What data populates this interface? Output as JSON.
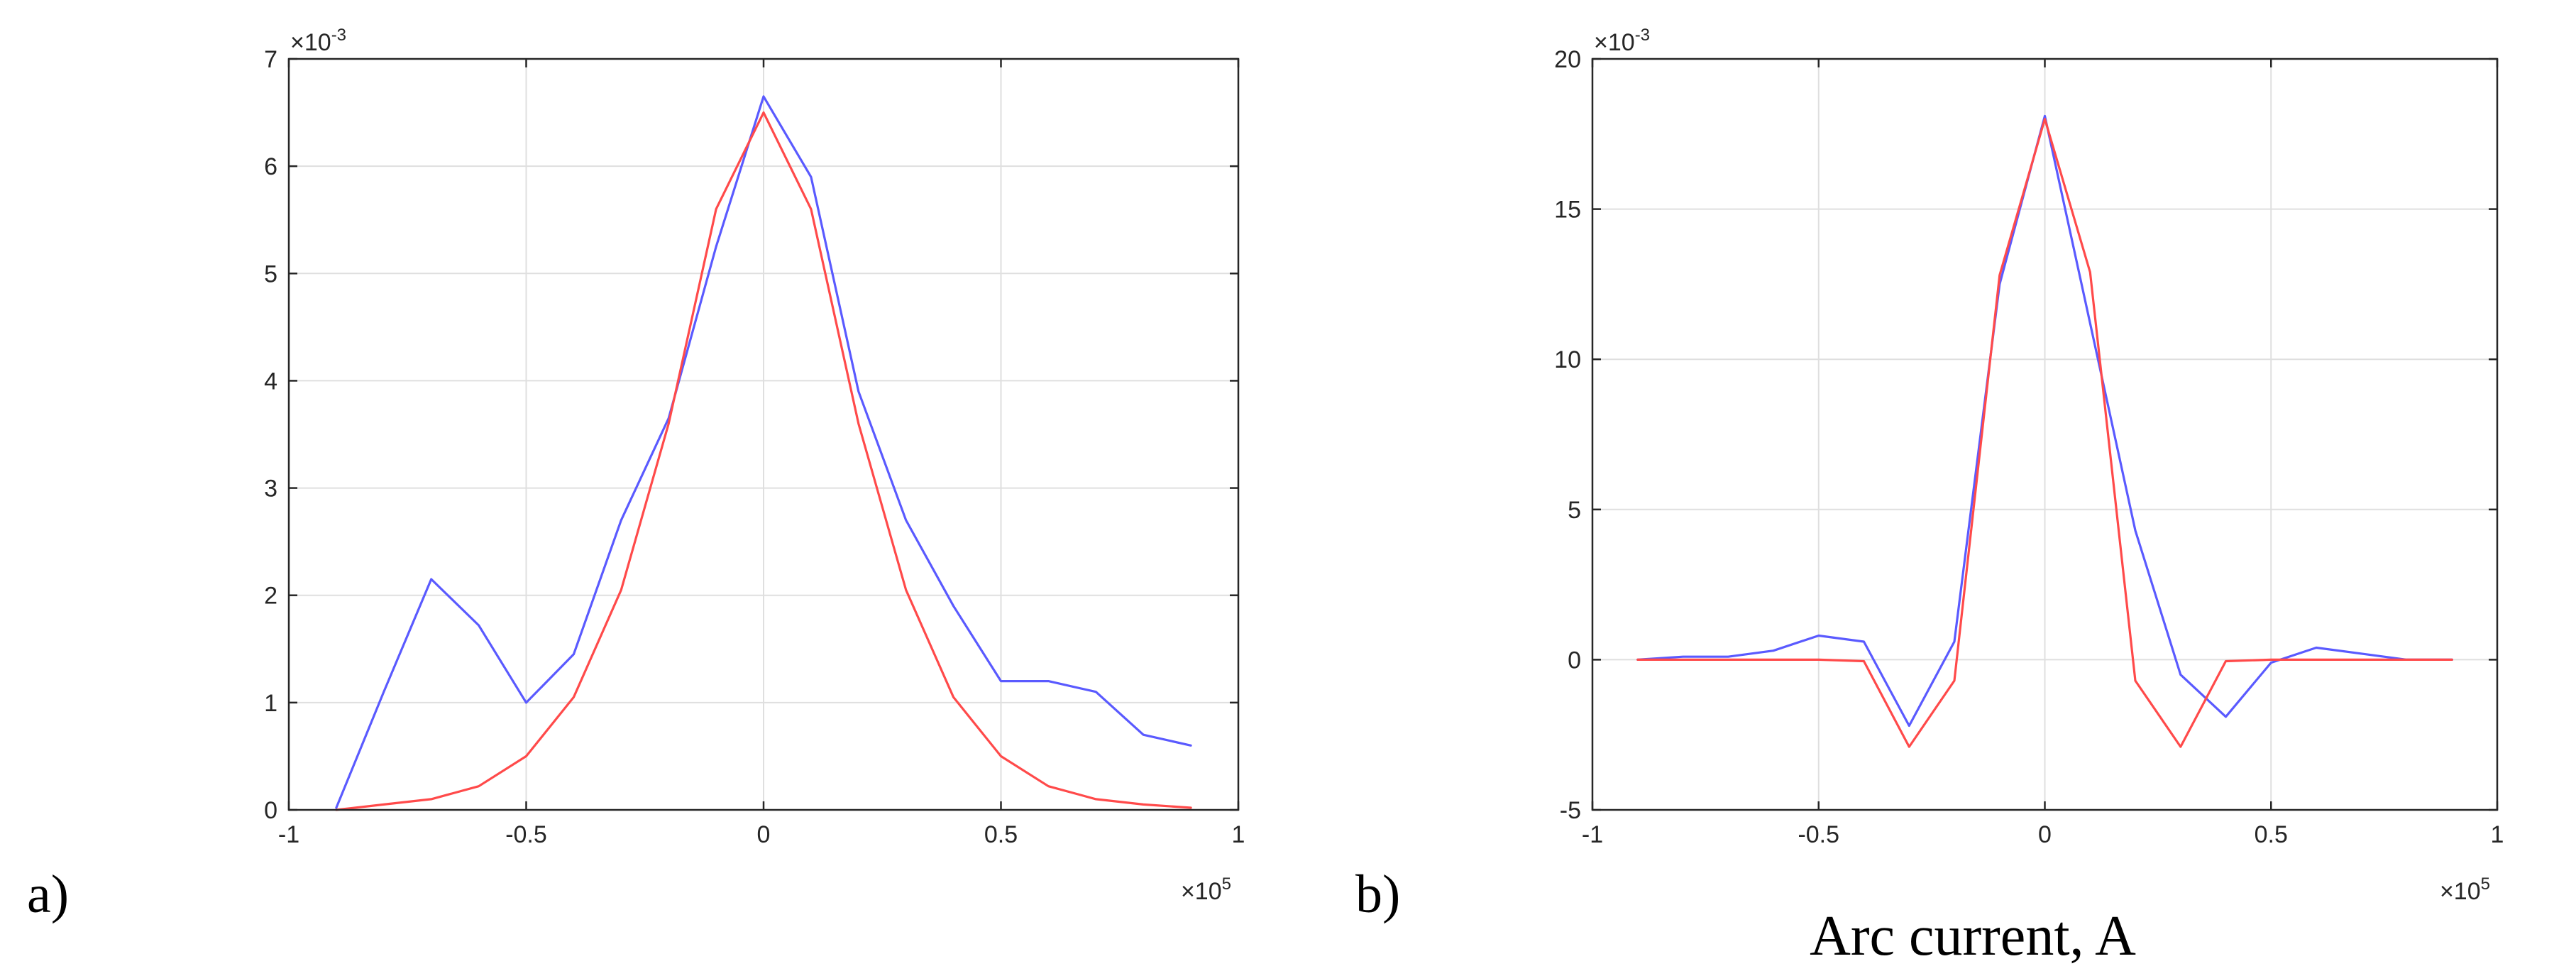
{
  "chart_data": [
    {
      "type": "line",
      "panel_label": "a)",
      "xlabel": "",
      "ylabel": "",
      "xlim": [
        -1,
        1
      ],
      "ylim": [
        0,
        7
      ],
      "xticks": [
        -1,
        -0.5,
        0,
        0.5,
        1
      ],
      "xtick_labels": [
        "-1",
        "-0.5",
        "0",
        "0.5",
        "1"
      ],
      "yticks": [
        0,
        1,
        2,
        3,
        4,
        5,
        6,
        7
      ],
      "ytick_labels": [
        "0",
        "1",
        "2",
        "3",
        "4",
        "5",
        "6",
        "7"
      ],
      "x_multiplier": "10",
      "x_multiplier_exp": "5",
      "y_multiplier": "10",
      "y_multiplier_exp": "-3",
      "grid": true,
      "x": [
        -0.9,
        -0.8,
        -0.7,
        -0.6,
        -0.5,
        -0.4,
        -0.3,
        -0.2,
        -0.1,
        0,
        0.1,
        0.2,
        0.3,
        0.4,
        0.5,
        0.6,
        0.7,
        0.8,
        0.9
      ],
      "series": [
        {
          "name": "blue",
          "color": "#5a5aff",
          "values": [
            0.02,
            1.1,
            2.15,
            1.72,
            1.0,
            1.45,
            2.7,
            3.65,
            5.25,
            6.65,
            5.9,
            3.9,
            2.7,
            1.9,
            1.2,
            1.2,
            1.1,
            0.7,
            0.6
          ]
        },
        {
          "name": "red",
          "color": "#ff4a4a",
          "values": [
            0.0,
            0.05,
            0.1,
            0.22,
            0.5,
            1.05,
            2.05,
            3.6,
            5.6,
            6.5,
            5.6,
            3.6,
            2.05,
            1.05,
            0.5,
            0.22,
            0.1,
            0.05,
            0.02
          ]
        }
      ]
    },
    {
      "type": "line",
      "panel_label": "b)",
      "xlabel": "Arc current, A",
      "ylabel": "",
      "xlim": [
        -1,
        1
      ],
      "ylim": [
        -5,
        20
      ],
      "xticks": [
        -1,
        -0.5,
        0,
        0.5,
        1
      ],
      "xtick_labels": [
        "-1",
        "-0.5",
        "0",
        "0.5",
        "1"
      ],
      "yticks": [
        -5,
        0,
        5,
        10,
        15,
        20
      ],
      "ytick_labels": [
        "-5",
        "0",
        "5",
        "10",
        "15",
        "20"
      ],
      "x_multiplier": "10",
      "x_multiplier_exp": "5",
      "y_multiplier": "10",
      "y_multiplier_exp": "-3",
      "grid": true,
      "x": [
        -0.9,
        -0.8,
        -0.7,
        -0.6,
        -0.5,
        -0.4,
        -0.3,
        -0.2,
        -0.1,
        0,
        0.1,
        0.2,
        0.3,
        0.4,
        0.5,
        0.6,
        0.7,
        0.8,
        0.9
      ],
      "series": [
        {
          "name": "blue",
          "color": "#5a5aff",
          "values": [
            0.0,
            0.1,
            0.1,
            0.3,
            0.8,
            0.6,
            -2.2,
            0.6,
            12.5,
            18.1,
            11.2,
            4.3,
            -0.5,
            -1.9,
            -0.1,
            0.4,
            0.2,
            0.0,
            0.0
          ]
        },
        {
          "name": "red",
          "color": "#ff4a4a",
          "values": [
            0.0,
            0.0,
            0.0,
            0.0,
            0.0,
            -0.05,
            -2.9,
            -0.7,
            12.8,
            18.0,
            12.9,
            -0.7,
            -2.9,
            -0.05,
            0.0,
            0.0,
            0.0,
            0.0,
            0.0
          ]
        }
      ]
    }
  ]
}
